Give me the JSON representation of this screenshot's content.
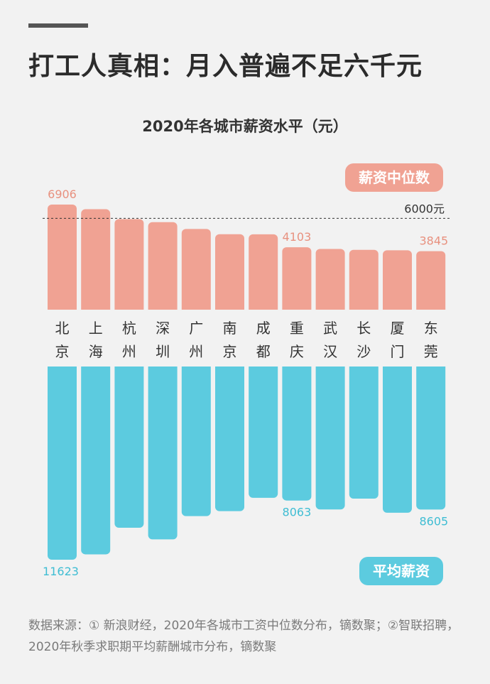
{
  "headline": "打工人真相：月入普遍不足六千元",
  "colors": {
    "median": "#f0a293",
    "median_label": "#e8917f",
    "mean": "#5ccbdf",
    "mean_label": "#3fbdd3"
  },
  "legend": {
    "median": "薪资中位数",
    "mean": "平均薪资"
  },
  "reference_line": {
    "value": 6000,
    "label": "6000元"
  },
  "source": "数据来源：① 新浪财经，2020年各城市工资中位数分布，镝数聚；②智联招聘，2020年秋季求职期平均薪酬城市分布，镝数聚",
  "chart_data": {
    "type": "bar",
    "title": "2020年各城市薪资水平（元）",
    "categories": [
      "北京",
      "上海",
      "杭州",
      "深圳",
      "广州",
      "南京",
      "成都",
      "重庆",
      "武汉",
      "长沙",
      "厦门",
      "东莞"
    ],
    "series": [
      {
        "name": "薪资中位数",
        "values": [
          6906,
          6600,
          5950,
          5750,
          5300,
          4960,
          4950,
          4103,
          3990,
          3930,
          3900,
          3845
        ]
      },
      {
        "name": "平均薪资",
        "values": [
          11623,
          11300,
          9700,
          10400,
          9000,
          8700,
          7900,
          8063,
          8600,
          7950,
          8800,
          8605
        ]
      }
    ],
    "data_labels": [
      {
        "series": 0,
        "index": 0,
        "text": "6906"
      },
      {
        "series": 0,
        "index": 7,
        "text": "4103"
      },
      {
        "series": 0,
        "index": 11,
        "text": "3845"
      },
      {
        "series": 1,
        "index": 0,
        "text": "11623"
      },
      {
        "series": 1,
        "index": 7,
        "text": "8063"
      },
      {
        "series": 1,
        "index": 11,
        "text": "8605"
      }
    ],
    "grid": false,
    "legend_position": "right"
  }
}
